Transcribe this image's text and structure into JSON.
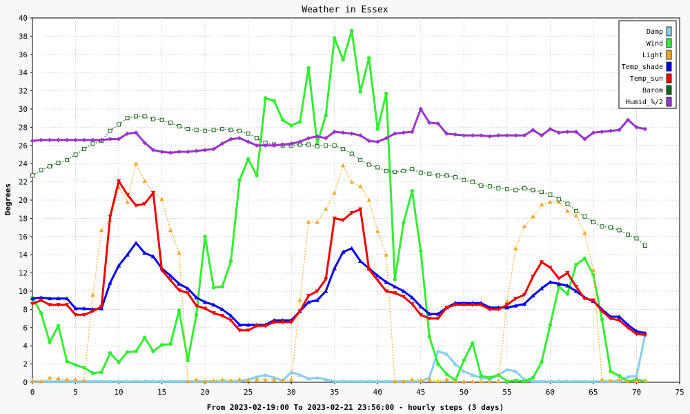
{
  "chart_data": {
    "type": "line",
    "title": "Weather in Essex",
    "xlabel": "From 2023-02-19:00 To 2023-02-21 23:56:00 - hourly steps (3 days)",
    "ylabel": "Degrees",
    "xlim": [
      0,
      75
    ],
    "ylim": [
      0,
      40
    ],
    "x_ticks": [
      0,
      5,
      10,
      15,
      20,
      25,
      30,
      35,
      40,
      45,
      50,
      55,
      60,
      65,
      70,
      75
    ],
    "y_ticks": [
      0,
      2,
      4,
      6,
      8,
      10,
      12,
      14,
      16,
      18,
      20,
      22,
      24,
      26,
      28,
      30,
      32,
      34,
      36,
      38,
      40
    ],
    "grid": true,
    "legend_position": "top-right",
    "x": [
      0,
      1,
      2,
      3,
      4,
      5,
      6,
      7,
      8,
      9,
      10,
      11,
      12,
      13,
      14,
      15,
      16,
      17,
      18,
      19,
      20,
      21,
      22,
      23,
      24,
      25,
      26,
      27,
      28,
      29,
      30,
      31,
      32,
      33,
      34,
      35,
      36,
      37,
      38,
      39,
      40,
      41,
      42,
      43,
      44,
      45,
      46,
      47,
      48,
      49,
      50,
      51,
      52,
      53,
      54,
      55,
      56,
      57,
      58,
      59,
      60,
      61,
      62,
      63,
      64,
      65,
      66,
      67,
      68,
      69,
      70,
      71
    ],
    "series": [
      {
        "name": "Damp",
        "color": "#87ceeb",
        "style": "solid",
        "marker": "triangle-up",
        "values": [
          0.1,
          0.1,
          0.1,
          0.1,
          0.1,
          0.1,
          0.1,
          0.1,
          0.1,
          0.1,
          0.1,
          0.1,
          0.1,
          0.1,
          0.1,
          0.1,
          0.1,
          0.1,
          0.1,
          0.1,
          0.1,
          0.1,
          0.1,
          0.1,
          0.1,
          0.3,
          0.6,
          0.8,
          0.5,
          0.2,
          1.1,
          0.8,
          0.4,
          0.5,
          0.3,
          0.1,
          0.1,
          0.1,
          0.1,
          0.1,
          0.1,
          0.1,
          0.1,
          0.1,
          0.1,
          0.1,
          0.5,
          3.4,
          3.1,
          2.0,
          1.2,
          0.8,
          0.5,
          0.3,
          0.8,
          1.4,
          1.2,
          0.3,
          0.1,
          0.1,
          0.1,
          0.1,
          0.1,
          0.1,
          0.1,
          0.1,
          0.1,
          0.1,
          0.1,
          0.6,
          0.7,
          5.2
        ]
      },
      {
        "name": "Wind",
        "color": "#33ee33",
        "style": "solid",
        "marker": "circle",
        "values": [
          9.3,
          7.6,
          4.4,
          6.2,
          2.3,
          1.9,
          1.6,
          1.0,
          1.1,
          3.2,
          2.2,
          3.3,
          3.4,
          4.9,
          3.4,
          4.1,
          4.2,
          7.9,
          2.4,
          7.4,
          16.0,
          10.4,
          10.5,
          13.3,
          22.2,
          24.5,
          22.7,
          31.2,
          30.9,
          28.8,
          28.2,
          28.6,
          34.5,
          26.2,
          29.3,
          37.8,
          35.4,
          38.6,
          31.9,
          35.6,
          27.8,
          31.7,
          11.3,
          17.5,
          21.0,
          14.4,
          5.0,
          2.0,
          0.9,
          0.2,
          2.4,
          4.3,
          0.7,
          0.5,
          0.8,
          0.1,
          0.2,
          0.1,
          0.5,
          2.2,
          6.3,
          10.5,
          9.7,
          12.9,
          13.6,
          11.8,
          6.9,
          1.2,
          0.7,
          0.1,
          0.3,
          0.1
        ]
      },
      {
        "name": "Light",
        "color": "#f5a623",
        "style": "dotted",
        "marker": "triangle-up",
        "values": [
          0.2,
          0.1,
          0.5,
          0.4,
          0.3,
          0.3,
          0.2,
          9.6,
          16.7,
          17.8,
          21.4,
          19.8,
          24.0,
          22.1,
          20.8,
          20.1,
          16.7,
          14.2,
          0.1,
          0.3,
          0.1,
          0.2,
          0.3,
          0.2,
          0.3,
          0.2,
          0.3,
          0.3,
          0.3,
          0.2,
          0.3,
          9.0,
          17.6,
          17.6,
          19.0,
          20.8,
          23.8,
          22.0,
          21.5,
          20.0,
          16.6,
          14.0,
          0.1,
          0.1,
          0.3,
          0.2,
          0.3,
          0.1,
          0.3,
          0.1,
          0.1,
          0.1,
          0.1,
          0.1,
          0.1,
          8.9,
          14.7,
          17.1,
          18.2,
          19.5,
          19.8,
          19.8,
          18.8,
          18.3,
          16.4,
          12.3,
          0.3,
          0.2,
          0.3,
          0.1,
          0.1,
          0.2
        ]
      },
      {
        "name": "Temp_shade",
        "color": "#0000ee",
        "style": "solid",
        "marker": "triangle-up",
        "values": [
          9.2,
          9.3,
          9.2,
          9.2,
          9.2,
          8.1,
          8.1,
          8.0,
          8.1,
          10.9,
          12.8,
          14.0,
          15.3,
          14.2,
          13.8,
          12.5,
          11.7,
          10.8,
          10.3,
          9.3,
          8.8,
          8.5,
          8.0,
          7.3,
          6.3,
          6.3,
          6.3,
          6.3,
          6.8,
          6.8,
          6.8,
          7.8,
          8.8,
          9.0,
          10.0,
          12.5,
          14.3,
          14.7,
          13.3,
          12.5,
          11.7,
          11.0,
          10.5,
          10.0,
          9.3,
          8.3,
          7.5,
          7.5,
          8.2,
          8.7,
          8.7,
          8.7,
          8.7,
          8.2,
          8.2,
          8.2,
          8.4,
          8.6,
          9.5,
          10.3,
          11.0,
          10.8,
          10.6,
          10.0,
          9.3,
          8.9,
          8.0,
          7.2,
          7.2,
          6.3,
          5.6,
          5.4
        ]
      },
      {
        "name": "Temp_sun",
        "color": "#ee0000",
        "style": "solid",
        "marker": "triangle-down",
        "values": [
          8.6,
          9.0,
          8.5,
          8.5,
          8.5,
          7.4,
          7.4,
          7.8,
          8.3,
          18.2,
          22.1,
          20.6,
          19.4,
          19.6,
          20.8,
          12.3,
          11.2,
          10.1,
          9.8,
          8.4,
          8.1,
          7.6,
          7.3,
          6.8,
          5.7,
          5.7,
          6.2,
          6.2,
          6.6,
          6.6,
          6.6,
          7.8,
          9.5,
          10.0,
          11.3,
          18.0,
          17.8,
          18.6,
          19.0,
          12.4,
          11.2,
          10.0,
          9.8,
          9.4,
          8.6,
          7.4,
          7.0,
          7.0,
          8.2,
          8.5,
          8.5,
          8.5,
          8.5,
          8.0,
          8.0,
          8.5,
          9.2,
          9.6,
          11.6,
          13.2,
          12.6,
          11.4,
          12.0,
          10.5,
          9.2,
          9.0,
          7.8,
          7.0,
          6.8,
          6.0,
          5.3,
          5.2
        ]
      },
      {
        "name": "Barom",
        "color": "#116611",
        "style": "dotted",
        "marker": "square",
        "values": [
          22.7,
          23.3,
          23.7,
          24.1,
          24.4,
          25.0,
          25.6,
          26.2,
          26.5,
          27.6,
          28.3,
          29.0,
          29.2,
          29.2,
          28.9,
          28.8,
          28.5,
          28.1,
          27.8,
          27.7,
          27.6,
          27.7,
          27.8,
          27.7,
          27.6,
          27.3,
          26.8,
          26.3,
          26.1,
          26.0,
          26.0,
          26.1,
          26.1,
          25.9,
          26.0,
          26.0,
          25.6,
          25.1,
          24.4,
          23.9,
          23.6,
          23.2,
          23.1,
          23.2,
          23.4,
          23.0,
          22.9,
          22.7,
          22.7,
          22.5,
          22.2,
          22.0,
          21.6,
          21.5,
          21.3,
          21.2,
          21.1,
          21.3,
          21.1,
          20.9,
          20.6,
          20.1,
          19.6,
          18.8,
          18.2,
          17.6,
          17.1,
          17.0,
          16.7,
          16.2,
          15.8,
          15.0
        ]
      },
      {
        "name": "Humid_%/2",
        "color": "#9932cc",
        "style": "solid",
        "marker": "diamond",
        "values": [
          26.5,
          26.6,
          26.6,
          26.6,
          26.6,
          26.6,
          26.6,
          26.6,
          26.6,
          26.7,
          26.7,
          27.3,
          27.4,
          26.3,
          25.5,
          25.3,
          25.2,
          25.3,
          25.3,
          25.4,
          25.5,
          25.6,
          26.2,
          26.7,
          26.8,
          26.4,
          26.0,
          26.0,
          26.0,
          26.1,
          26.2,
          26.4,
          26.8,
          27.0,
          26.8,
          27.5,
          27.4,
          27.3,
          27.1,
          26.5,
          26.4,
          26.8,
          27.3,
          27.4,
          27.5,
          30.0,
          28.5,
          28.4,
          27.3,
          27.2,
          27.1,
          27.1,
          27.1,
          27.0,
          27.1,
          27.1,
          27.1,
          27.1,
          27.7,
          27.1,
          27.8,
          27.4,
          27.5,
          27.5,
          26.7,
          27.4,
          27.5,
          27.6,
          27.7,
          28.8,
          28.0,
          27.8
        ]
      }
    ]
  }
}
